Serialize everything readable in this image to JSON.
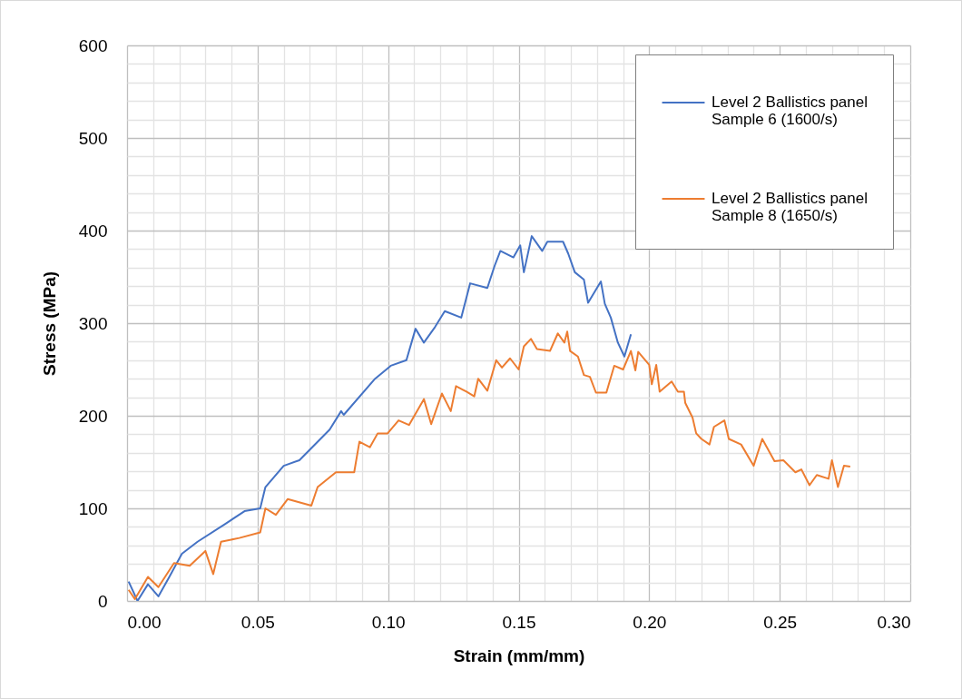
{
  "chart_data": {
    "type": "line",
    "xlabel": "Strain (mm/mm)",
    "ylabel": "Stress (MPa)",
    "xlim": [
      0,
      0.3
    ],
    "ylim": [
      0,
      600
    ],
    "xticks": [
      {
        "value": 0,
        "label": "0.00"
      },
      {
        "value": 0.01,
        "label": null
      },
      {
        "value": 0.02,
        "label": null
      },
      {
        "value": 0.03,
        "label": null
      },
      {
        "value": 0.04,
        "label": null
      },
      {
        "value": 0.05,
        "label": "0.05"
      },
      {
        "value": 0.06,
        "label": null
      },
      {
        "value": 0.07,
        "label": null
      },
      {
        "value": 0.08,
        "label": null
      },
      {
        "value": 0.09,
        "label": null
      },
      {
        "value": 0.1,
        "label": "0.10"
      },
      {
        "value": 0.11,
        "label": null
      },
      {
        "value": 0.12,
        "label": null
      },
      {
        "value": 0.13,
        "label": null
      },
      {
        "value": 0.14,
        "label": null
      },
      {
        "value": 0.15,
        "label": "0.15"
      },
      {
        "value": 0.16,
        "label": null
      },
      {
        "value": 0.17,
        "label": null
      },
      {
        "value": 0.18,
        "label": null
      },
      {
        "value": 0.19,
        "label": null
      },
      {
        "value": 0.2,
        "label": "0.20"
      },
      {
        "value": 0.21,
        "label": null
      },
      {
        "value": 0.22,
        "label": null
      },
      {
        "value": 0.23,
        "label": null
      },
      {
        "value": 0.24,
        "label": null
      },
      {
        "value": 0.25,
        "label": "0.25"
      },
      {
        "value": 0.26,
        "label": null
      },
      {
        "value": 0.27,
        "label": null
      },
      {
        "value": 0.28,
        "label": null
      },
      {
        "value": 0.29,
        "label": null
      },
      {
        "value": 0.3,
        "label": "0.30"
      }
    ],
    "yticks": [
      0,
      {
        "value": 20,
        "label": null
      },
      {
        "value": 40,
        "label": null
      },
      {
        "value": 60,
        "label": null
      },
      {
        "value": 80,
        "label": null
      },
      100,
      {
        "value": 120,
        "label": null
      },
      {
        "value": 140,
        "label": null
      },
      {
        "value": 160,
        "label": null
      },
      {
        "value": 180,
        "label": null
      },
      200,
      {
        "value": 220,
        "label": null
      },
      {
        "value": 240,
        "label": null
      },
      {
        "value": 260,
        "label": null
      },
      {
        "value": 280,
        "label": null
      },
      300,
      {
        "value": 320,
        "label": null
      },
      {
        "value": 340,
        "label": null
      },
      {
        "value": 360,
        "label": null
      },
      {
        "value": 380,
        "label": null
      },
      400,
      {
        "value": 420,
        "label": null
      },
      {
        "value": 440,
        "label": null
      },
      {
        "value": 460,
        "label": null
      },
      {
        "value": 480,
        "label": null
      },
      500,
      {
        "value": 520,
        "label": null
      },
      {
        "value": 540,
        "label": null
      },
      {
        "value": 560,
        "label": null
      },
      {
        "value": 580,
        "label": null
      },
      600
    ],
    "grid": true,
    "legend": "top right",
    "series": [
      {
        "name": "Level 2 Ballistics panel Sample 6 (1600/s)",
        "color": "#4472c4",
        "x": [
          0.0006,
          0.004,
          0.008,
          0.012,
          0.016,
          0.021,
          0.027,
          0.0375,
          0.045,
          0.051,
          0.053,
          0.06,
          0.066,
          0.0776,
          0.082,
          0.083,
          0.095,
          0.101,
          0.107,
          0.1105,
          0.1137,
          0.118,
          0.1217,
          0.128,
          0.1314,
          0.138,
          0.1408,
          0.143,
          0.148,
          0.1506,
          0.152,
          0.155,
          0.159,
          0.161,
          0.167,
          0.169,
          0.1715,
          0.175,
          0.1766,
          0.1815,
          0.183,
          0.1853,
          0.188,
          0.1905,
          0.193
        ],
        "values": [
          21,
          0,
          18,
          5,
          25,
          51,
          64,
          83,
          97,
          100,
          123,
          146,
          152,
          185,
          205,
          201,
          240,
          254,
          260,
          294,
          279,
          296,
          313,
          306,
          343,
          338,
          362,
          378,
          371,
          384,
          355,
          394,
          378,
          388,
          388,
          375,
          355,
          347,
          322,
          345,
          321,
          306,
          279,
          264,
          288
        ]
      },
      {
        "name": "Level 2 Ballistics panel Sample 8 (1650/s)",
        "color": "#ed7d31",
        "x": [
          0.0006,
          0.003,
          0.008,
          0.012,
          0.018,
          0.024,
          0.03,
          0.033,
          0.036,
          0.043,
          0.051,
          0.053,
          0.057,
          0.0615,
          0.0706,
          0.073,
          0.08,
          0.087,
          0.089,
          0.093,
          0.096,
          0.0998,
          0.104,
          0.108,
          0.1137,
          0.1165,
          0.1206,
          0.124,
          0.126,
          0.13,
          0.133,
          0.1345,
          0.138,
          0.1414,
          0.1436,
          0.1467,
          0.15,
          0.152,
          0.1547,
          0.157,
          0.162,
          0.165,
          0.1675,
          0.1686,
          0.1697,
          0.1727,
          0.175,
          0.1773,
          0.1796,
          0.1836,
          0.1866,
          0.19,
          0.193,
          0.1947,
          0.1958,
          0.2,
          0.201,
          0.2027,
          0.204,
          0.2086,
          0.211,
          0.2133,
          0.2138,
          0.2166,
          0.218,
          0.22,
          0.2231,
          0.2248,
          0.2288,
          0.2305,
          0.2352,
          0.24,
          0.2433,
          0.248,
          0.2514,
          0.256,
          0.2583,
          0.2614,
          0.2642,
          0.2687,
          0.27,
          0.2723,
          0.2746,
          0.277
        ],
        "values": [
          12,
          2,
          26,
          15,
          41,
          38,
          54,
          29,
          64,
          68,
          74,
          100,
          93,
          110,
          103,
          123,
          139,
          139,
          172,
          166,
          181,
          181,
          195,
          190,
          218,
          191,
          224,
          205,
          232,
          226,
          221,
          240,
          227,
          260,
          252,
          262,
          250,
          275,
          283,
          272,
          270,
          289,
          279,
          291,
          270,
          264,
          244,
          242,
          225,
          225,
          254,
          250,
          270,
          249,
          269,
          255,
          234,
          255,
          226,
          237,
          226,
          226,
          214,
          198,
          181,
          175,
          169,
          188,
          195,
          175,
          169,
          146,
          175,
          151,
          152,
          139,
          142,
          125,
          136,
          132,
          152,
          123,
          146,
          145
        ]
      }
    ]
  }
}
